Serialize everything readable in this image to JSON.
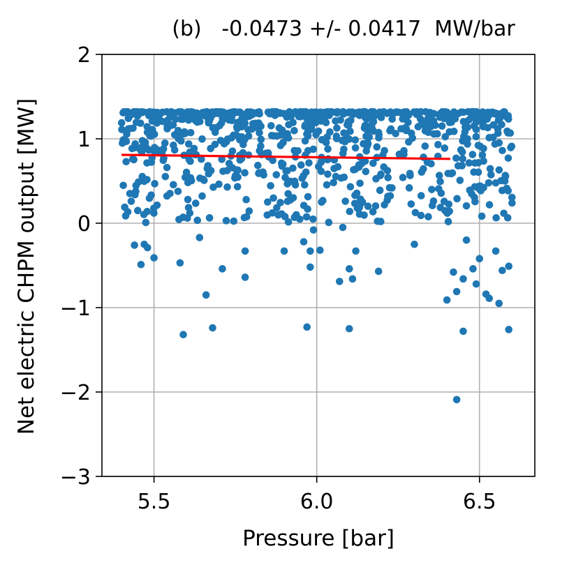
{
  "chart_data": {
    "type": "scatter",
    "title": "(b)   -0.0473 +/- 0.0417  MW/bar",
    "xlabel": "Pressure [bar]",
    "ylabel": "Net electric CHPM output [MW]",
    "xlim": [
      5.34,
      6.67
    ],
    "ylim": [
      -3,
      2
    ],
    "xticks": [
      5.5,
      6.0,
      6.5
    ],
    "xtick_labels": [
      "5.5",
      "6.0",
      "6.5"
    ],
    "yticks": [
      -3,
      -2,
      -1,
      0,
      1,
      2
    ],
    "ytick_labels": [
      "−3",
      "−2",
      "−1",
      "0",
      "1",
      "2"
    ],
    "grid": true,
    "point_color": "#1f77b4",
    "fit_color": "#ff0000",
    "fit_line": {
      "x": [
        5.4,
        6.41
      ],
      "y": [
        0.81,
        0.762
      ]
    },
    "outliers": {
      "x": [
        5.41,
        5.43,
        5.44,
        5.45,
        5.46,
        5.47,
        5.48,
        5.5,
        5.58,
        5.59,
        5.61,
        5.64,
        5.66,
        5.68,
        5.71,
        5.78,
        5.78,
        5.9,
        5.96,
        5.97,
        5.98,
        5.98,
        5.99,
        6.01,
        6.07,
        6.08,
        6.1,
        6.1,
        6.11,
        6.12,
        6.19,
        6.3,
        6.4,
        6.42,
        6.43,
        6.43,
        6.45,
        6.45,
        6.46,
        6.48,
        6.49,
        6.5,
        6.52,
        6.53,
        6.55,
        6.56,
        6.57,
        6.59,
        6.59,
        6.6
      ],
      "y": [
        0.19,
        0.26,
        -0.26,
        0.15,
        -0.49,
        -0.25,
        -0.29,
        -0.41,
        -0.47,
        -1.32,
        0.12,
        -0.17,
        -0.85,
        -1.24,
        -0.54,
        -0.33,
        -0.64,
        -0.33,
        -0.22,
        -1.23,
        -0.52,
        -0.33,
        -0.08,
        -0.32,
        -0.69,
        -0.05,
        -0.54,
        -1.25,
        -0.66,
        -0.33,
        -0.57,
        -0.25,
        -0.91,
        -0.58,
        -2.09,
        -0.81,
        -1.28,
        -0.66,
        -0.2,
        -0.54,
        -0.72,
        -0.42,
        -0.84,
        -0.89,
        -0.33,
        -0.95,
        -0.56,
        -1.26,
        -0.51,
        0.24
      ]
    },
    "bulk": {
      "n": 820,
      "x_range": [
        5.4,
        6.6
      ],
      "y_range": [
        0.0,
        1.32
      ],
      "approx_mean_y": 0.88
    }
  }
}
